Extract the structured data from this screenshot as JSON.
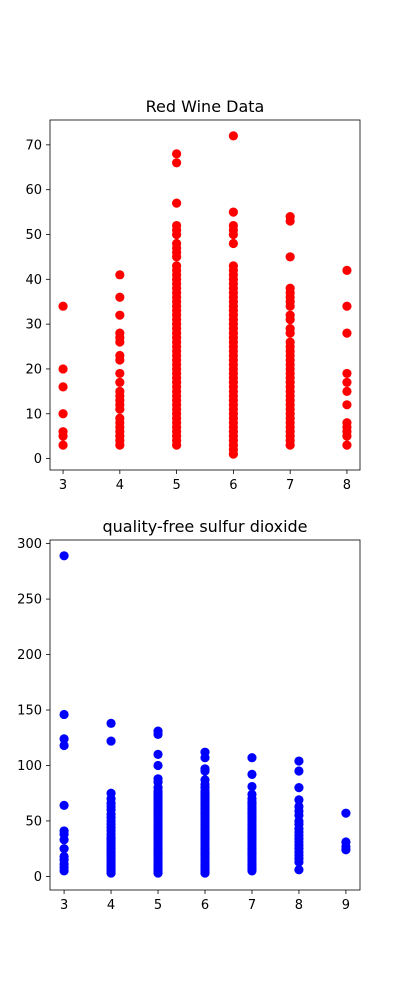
{
  "chart_data": [
    {
      "type": "scatter",
      "title": "Red Wine Data",
      "xlabel": "",
      "ylabel": "",
      "xlim": [
        2.77,
        8.23
      ],
      "ylim": [
        -2.55,
        75.55
      ],
      "xticks": [
        3,
        4,
        5,
        6,
        7,
        8
      ],
      "yticks": [
        0,
        10,
        20,
        30,
        40,
        50,
        60,
        70
      ],
      "color": "#ff0000",
      "grid": false,
      "points": {
        "3": [
          3,
          5,
          6,
          10,
          16,
          20,
          34
        ],
        "4": [
          3,
          4,
          5,
          6,
          7,
          8,
          9,
          11,
          12,
          13,
          14,
          15,
          17,
          19,
          22,
          23,
          26,
          27,
          28,
          32,
          36,
          41
        ],
        "5": [
          3,
          4,
          5,
          6,
          7,
          8,
          9,
          10,
          11,
          12,
          13,
          14,
          15,
          16,
          17,
          18,
          19,
          20,
          21,
          22,
          23,
          24,
          25,
          26,
          27,
          28,
          29,
          30,
          31,
          32,
          33,
          34,
          35,
          36,
          37,
          38,
          39,
          40,
          41,
          42,
          43,
          45,
          46,
          47,
          48,
          50,
          51,
          52,
          57,
          66,
          68
        ],
        "6": [
          1,
          2,
          3,
          4,
          5,
          6,
          7,
          8,
          9,
          10,
          11,
          12,
          13,
          14,
          15,
          16,
          17,
          18,
          19,
          20,
          21,
          22,
          23,
          24,
          25,
          26,
          27,
          28,
          29,
          30,
          31,
          32,
          33,
          34,
          35,
          36,
          37,
          38,
          39,
          40,
          41,
          42,
          43,
          48,
          50,
          51,
          52,
          55,
          72
        ],
        "7": [
          3,
          4,
          5,
          6,
          7,
          8,
          9,
          10,
          11,
          12,
          13,
          14,
          15,
          16,
          17,
          18,
          19,
          20,
          21,
          22,
          23,
          24,
          25,
          26,
          28,
          29,
          31,
          32,
          34,
          35,
          36,
          37,
          38,
          45,
          53,
          54
        ],
        "8": [
          3,
          5,
          6,
          7,
          8,
          12,
          15,
          17,
          19,
          28,
          34,
          42
        ]
      }
    },
    {
      "type": "scatter",
      "title": "quality-free sulfur dioxide",
      "xlabel": "",
      "ylabel": "",
      "xlim": [
        2.7,
        9.3
      ],
      "ylim": [
        -12.25,
        303.25
      ],
      "xticks": [
        3,
        4,
        5,
        6,
        7,
        8,
        9
      ],
      "yticks": [
        0,
        50,
        100,
        150,
        200,
        250,
        300
      ],
      "color": "#0000ff",
      "grid": false,
      "points": {
        "3": [
          5,
          8,
          11,
          15,
          18,
          25,
          33,
          38,
          41,
          64,
          118,
          124,
          146,
          289
        ],
        "4": [
          3,
          5,
          7,
          9,
          11,
          13,
          15,
          17,
          19,
          21,
          23,
          25,
          27,
          29,
          31,
          33,
          35,
          38,
          41,
          44,
          47,
          50,
          53,
          56,
          60,
          63,
          66,
          70,
          75,
          122,
          138
        ],
        "5": [
          3,
          5,
          7,
          9,
          11,
          13,
          15,
          17,
          19,
          21,
          23,
          25,
          27,
          29,
          31,
          33,
          35,
          37,
          39,
          41,
          43,
          45,
          47,
          49,
          51,
          53,
          55,
          57,
          59,
          61,
          63,
          65,
          67,
          69,
          71,
          73,
          75,
          77,
          80,
          85,
          88,
          100,
          110,
          128,
          131
        ],
        "6": [
          3,
          5,
          7,
          9,
          11,
          13,
          15,
          17,
          19,
          21,
          23,
          25,
          27,
          29,
          31,
          33,
          35,
          37,
          39,
          41,
          43,
          45,
          47,
          49,
          51,
          53,
          55,
          57,
          59,
          61,
          63,
          65,
          67,
          69,
          71,
          73,
          75,
          77,
          80,
          83,
          87,
          95,
          97,
          107,
          112
        ],
        "7": [
          5,
          7,
          9,
          11,
          13,
          15,
          17,
          19,
          21,
          23,
          25,
          27,
          29,
          31,
          33,
          35,
          37,
          39,
          41,
          43,
          45,
          47,
          49,
          51,
          53,
          55,
          57,
          59,
          61,
          63,
          65,
          67,
          70,
          74,
          81,
          92,
          107
        ],
        "8": [
          6,
          13,
          16,
          19,
          22,
          25,
          28,
          31,
          34,
          37,
          40,
          43,
          47,
          50,
          55,
          59,
          63,
          69,
          80,
          95,
          104
        ],
        "9": [
          24,
          27,
          31,
          57
        ]
      }
    }
  ]
}
